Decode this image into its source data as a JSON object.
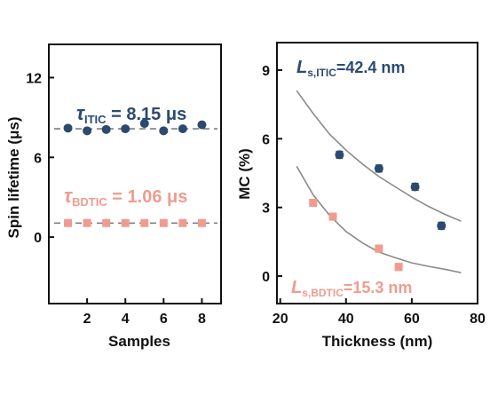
{
  "colors": {
    "itic": "#2c4a6f",
    "bdtic": "#ef9c8e",
    "fit": "#8a8a8a",
    "dashed": "#666666",
    "axis": "#111111"
  },
  "chart_data": [
    {
      "type": "scatter",
      "xlabel": "Samples",
      "ylabel": "Spin lifetime (μs)",
      "xlim": [
        0,
        9
      ],
      "ylim": [
        -5,
        14.5
      ],
      "x_ticks": [
        "2",
        "4",
        "6",
        "8"
      ],
      "y_ticks": [
        "12",
        "6",
        "0"
      ],
      "grid": false,
      "legend": "none",
      "annotations": [
        {
          "symbol": "τ",
          "sub": "ITIC",
          "text": " = 8.15 μs",
          "series": "itic"
        },
        {
          "symbol": "τ",
          "sub": "BDTIC",
          "text": " = 1.06 μs",
          "series": "bdtic"
        }
      ],
      "series": [
        {
          "key": "itic",
          "marker": "circle",
          "x": [
            1,
            2,
            3,
            4,
            5,
            6,
            7,
            8
          ],
          "y": [
            8.2,
            8.0,
            8.1,
            8.15,
            8.55,
            8.0,
            8.15,
            8.45
          ],
          "reference_line": 8.15
        },
        {
          "key": "bdtic",
          "marker": "square",
          "x": [
            1,
            2,
            3,
            4,
            5,
            6,
            7,
            8
          ],
          "y": [
            1.06,
            1.06,
            1.06,
            1.06,
            1.06,
            1.06,
            1.06,
            1.06
          ],
          "reference_line": 1.06
        }
      ]
    },
    {
      "type": "scatter",
      "xlabel": "Thickness (nm)",
      "ylabel": "MC (%)",
      "xlim": [
        19,
        80
      ],
      "ylim": [
        -1.2,
        10.2
      ],
      "x_ticks": [
        "20",
        "40",
        "60",
        "80"
      ],
      "y_ticks": [
        "9",
        "6",
        "3",
        "0"
      ],
      "grid": false,
      "legend": "none",
      "annotations": [
        {
          "symbol": "L",
          "sub": "s,ITIC",
          "text": "=42.4 nm",
          "series": "itic"
        },
        {
          "symbol": "L",
          "sub": "s,BDTIC",
          "text": "=15.3 nm",
          "series": "bdtic"
        }
      ],
      "series": [
        {
          "key": "itic",
          "marker": "circle",
          "x": [
            38,
            50,
            61,
            69
          ],
          "y": [
            5.3,
            4.7,
            3.9,
            2.2
          ],
          "err": [
            0.15,
            0.15,
            0.15,
            0.15
          ],
          "fit": {
            "x": [
              25,
              30,
              35,
              40,
              45,
              50,
              55,
              60,
              65,
              70,
              75
            ],
            "y": [
              8.1,
              7.1,
              6.2,
              5.5,
              4.9,
              4.35,
              3.9,
              3.45,
              3.05,
              2.7,
              2.4
            ]
          }
        },
        {
          "key": "bdtic",
          "marker": "square",
          "x": [
            30,
            36,
            50,
            56
          ],
          "y": [
            3.2,
            2.6,
            1.2,
            0.4
          ],
          "err": [
            0.15,
            0.15,
            0.15,
            0.15
          ],
          "fit": {
            "x": [
              25,
              30,
              35,
              40,
              45,
              50,
              55,
              60,
              65,
              70,
              75
            ],
            "y": [
              4.8,
              3.55,
              2.65,
              1.95,
              1.45,
              1.05,
              0.8,
              0.58,
              0.43,
              0.3,
              0.15
            ]
          }
        }
      ]
    }
  ]
}
